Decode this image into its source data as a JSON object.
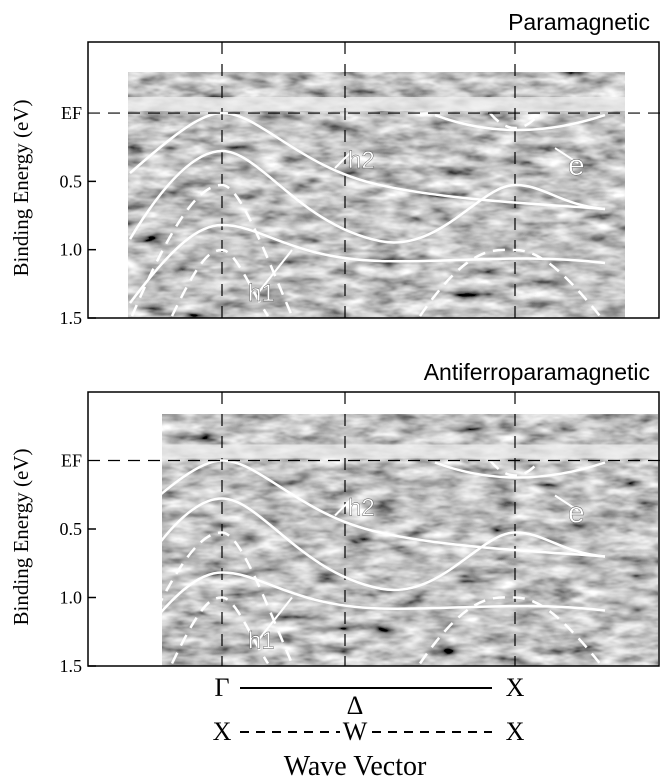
{
  "chart_data": [
    {
      "type": "band-map",
      "title": "Paramagnetic",
      "y_label": "Binding Energy (eV)",
      "ylim": [
        1.5,
        -0.52
      ],
      "yticks": [
        {
          "value": 0,
          "label": "EF"
        },
        0.5,
        {
          "value": 1,
          "label": "1.0"
        },
        1.5
      ],
      "annotations": [
        "h2",
        "e",
        "h1"
      ]
    },
    {
      "type": "band-map",
      "title": "Antiferroparamagnetic",
      "y_label": "Binding Energy (eV)",
      "ylim": [
        1.5,
        -0.5
      ],
      "yticks": [
        {
          "value": 0,
          "label": "EF"
        },
        0.5,
        {
          "value": 1,
          "label": "1.0"
        },
        1.5
      ],
      "annotations": [
        "h2",
        "e",
        "h1"
      ]
    }
  ],
  "x_axis": {
    "upper": [
      "Γ",
      "Δ",
      "X"
    ],
    "lower": [
      "X",
      "W",
      "X"
    ],
    "label": "Wave Vector"
  }
}
